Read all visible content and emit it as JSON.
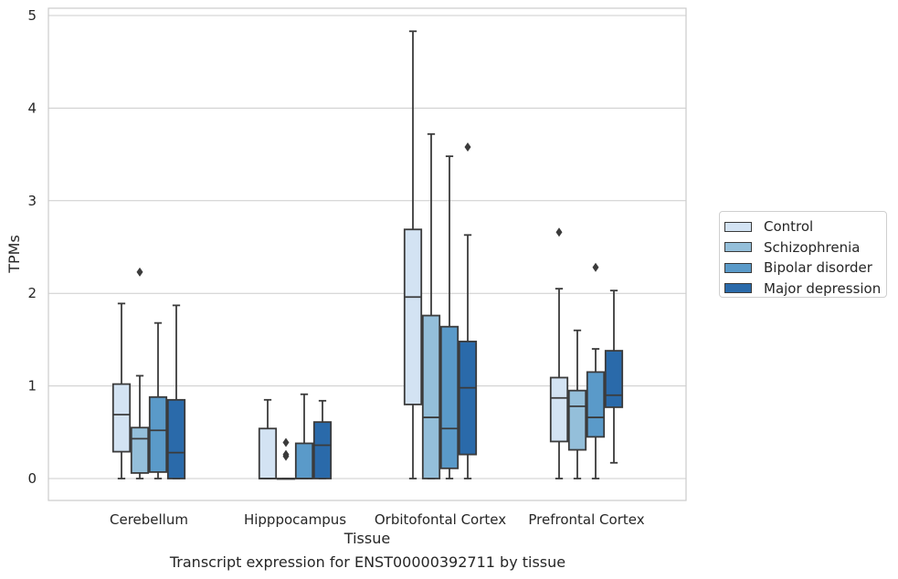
{
  "chart_data": {
    "type": "box",
    "xlabel": "Tissue",
    "ylabel": "TPMs",
    "ylim": [
      -0.22,
      5.08
    ],
    "yticks": [
      0,
      1,
      2,
      3,
      4,
      5
    ],
    "grid": "horizontal",
    "legend_position": "right",
    "categories": [
      "Cerebellum",
      "Hipppocampus",
      "Orbitofontal Cortex",
      "Prefrontal Cortex"
    ],
    "series": [
      {
        "name": "Control",
        "color": "#d3e3f3",
        "boxes": [
          {
            "whislo": 0,
            "q1": 0.29,
            "med": 0.69,
            "q3": 1.02,
            "whishi": 1.89,
            "fliers": []
          },
          {
            "whislo": 0,
            "q1": 0,
            "med": 0,
            "q3": 0.54,
            "whishi": 0.85,
            "fliers": []
          },
          {
            "whislo": 0,
            "q1": 0.8,
            "med": 1.96,
            "q3": 2.69,
            "whishi": 4.83,
            "fliers": []
          },
          {
            "whislo": 0,
            "q1": 0.4,
            "med": 0.87,
            "q3": 1.09,
            "whishi": 2.05,
            "fliers": [
              2.66
            ]
          }
        ]
      },
      {
        "name": "Schizophrenia",
        "color": "#94bfda",
        "boxes": [
          {
            "whislo": 0,
            "q1": 0.06,
            "med": 0.43,
            "q3": 0.55,
            "whishi": 1.11,
            "fliers": [
              2.23
            ]
          },
          {
            "whislo": 0,
            "q1": 0,
            "med": 0,
            "q3": 0,
            "whishi": 0,
            "fliers": [
              0.39,
              0.26,
              0.24
            ]
          },
          {
            "whislo": 0,
            "q1": 0,
            "med": 0.66,
            "q3": 1.76,
            "whishi": 3.72,
            "fliers": []
          },
          {
            "whislo": 0,
            "q1": 0.31,
            "med": 0.78,
            "q3": 0.95,
            "whishi": 1.6,
            "fliers": []
          }
        ]
      },
      {
        "name": "Bipolar disorder",
        "color": "#5a9ac9",
        "boxes": [
          {
            "whislo": 0,
            "q1": 0.07,
            "med": 0.52,
            "q3": 0.88,
            "whishi": 1.68,
            "fliers": []
          },
          {
            "whislo": 0,
            "q1": 0,
            "med": 0,
            "q3": 0.38,
            "whishi": 0.91,
            "fliers": []
          },
          {
            "whislo": 0,
            "q1": 0.11,
            "med": 0.54,
            "q3": 1.64,
            "whishi": 3.48,
            "fliers": []
          },
          {
            "whislo": 0,
            "q1": 0.45,
            "med": 0.66,
            "q3": 1.15,
            "whishi": 1.4,
            "fliers": [
              2.28
            ]
          }
        ]
      },
      {
        "name": "Major depression",
        "color": "#2a6aaa",
        "boxes": [
          {
            "whislo": 0,
            "q1": 0,
            "med": 0.28,
            "q3": 0.85,
            "whishi": 1.87,
            "fliers": []
          },
          {
            "whislo": 0,
            "q1": 0,
            "med": 0.36,
            "q3": 0.61,
            "whishi": 0.84,
            "fliers": []
          },
          {
            "whislo": 0,
            "q1": 0.26,
            "med": 0.98,
            "q3": 1.48,
            "whishi": 2.63,
            "fliers": [
              3.58
            ]
          },
          {
            "whislo": 0.17,
            "q1": 0.77,
            "med": 0.9,
            "q3": 1.38,
            "whishi": 2.03,
            "fliers": []
          }
        ]
      }
    ]
  },
  "caption": "Transcript expression for ENST00000392711 by tissue"
}
